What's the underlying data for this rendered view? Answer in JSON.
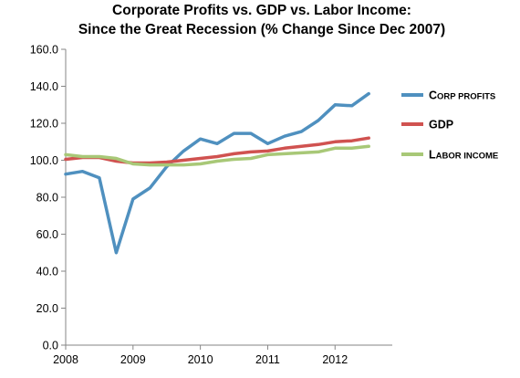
{
  "chart_data": {
    "type": "line",
    "title": "Corporate Profits vs. GDP vs. Labor Income:",
    "subtitle": "Since the Great Recession (% Change Since Dec 2007)",
    "xlabel": "",
    "ylabel": "",
    "ylim": [
      0,
      160
    ],
    "xlim": [
      2008,
      2012.85
    ],
    "y_ticks": [
      "0.0",
      "20.0",
      "40.0",
      "60.0",
      "80.0",
      "100.0",
      "120.0",
      "140.0",
      "160.0"
    ],
    "x_ticks": [
      "2008",
      "2009",
      "2010",
      "2011",
      "2012"
    ],
    "grid": false,
    "legend_position": "right",
    "series": [
      {
        "name": "Corp profits",
        "legend_parts": [
          "C",
          "orp profits"
        ],
        "color": "#4f90bf",
        "x": [
          2008.0,
          2008.25,
          2008.5,
          2008.75,
          2009.0,
          2009.25,
          2009.5,
          2009.75,
          2010.0,
          2010.25,
          2010.5,
          2010.75,
          2011.0,
          2011.25,
          2011.5,
          2011.75,
          2012.0,
          2012.25,
          2012.5
        ],
        "values": [
          92.5,
          94,
          90.5,
          50,
          79,
          85,
          96.5,
          105,
          111.5,
          109,
          114.5,
          114.5,
          109,
          113,
          115.5,
          121.5,
          130,
          129.5,
          136
        ]
      },
      {
        "name": "GDP",
        "legend_parts": [
          "GDP",
          ""
        ],
        "color": "#d05250",
        "x": [
          2008.0,
          2008.25,
          2008.5,
          2008.75,
          2009.0,
          2009.25,
          2009.5,
          2009.75,
          2010.0,
          2010.25,
          2010.5,
          2010.75,
          2011.0,
          2011.25,
          2011.5,
          2011.75,
          2012.0,
          2012.25,
          2012.5
        ],
        "values": [
          100.5,
          101.5,
          101.5,
          99.5,
          98.5,
          98.5,
          99,
          100,
          101,
          102,
          103.5,
          104.5,
          105,
          106.5,
          107.5,
          108.5,
          110,
          110.5,
          112
        ]
      },
      {
        "name": "Labor income",
        "legend_parts": [
          "L",
          "abor income"
        ],
        "color": "#a8c877",
        "x": [
          2008.0,
          2008.25,
          2008.5,
          2008.75,
          2009.0,
          2009.25,
          2009.5,
          2009.75,
          2010.0,
          2010.25,
          2010.5,
          2010.75,
          2011.0,
          2011.25,
          2011.5,
          2011.75,
          2012.0,
          2012.25,
          2012.5
        ],
        "values": [
          103,
          102,
          102,
          101,
          98,
          97.5,
          97.5,
          97.5,
          98,
          99.5,
          100.5,
          101,
          103,
          103.5,
          104,
          104.5,
          106.5,
          106.5,
          107.5
        ]
      }
    ]
  }
}
